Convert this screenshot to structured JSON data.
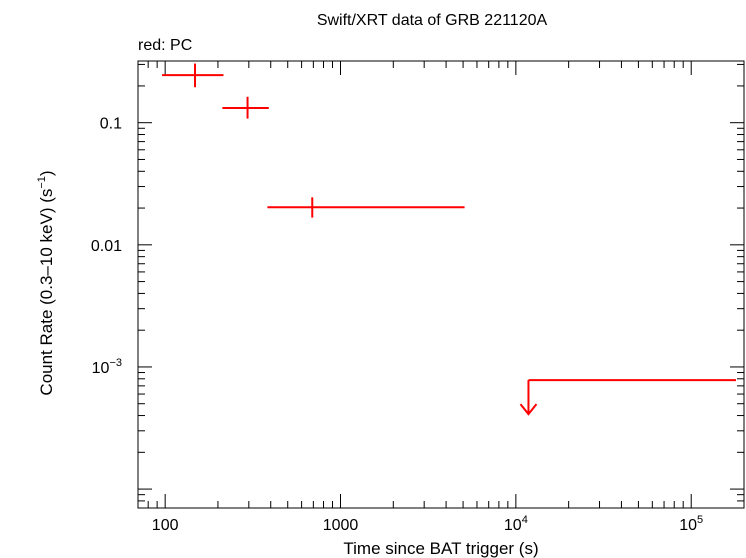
{
  "chart_data": {
    "type": "scatter",
    "title": "Swift/XRT data of GRB 221120A",
    "subtitle": "red: PC",
    "xlabel": "Time since BAT trigger (s)",
    "ylabel": "Count Rate (0.3–10 keV) (s",
    "ylabel_sup": "−1",
    "ylabel_tail": ")",
    "xscale": "log",
    "yscale": "log",
    "xlim": [
      70,
      200000
    ],
    "ylim": [
      7e-05,
      0.32
    ],
    "xticks": [
      {
        "value": 100,
        "base": "100",
        "exp": ""
      },
      {
        "value": 1000,
        "base": "1000",
        "exp": ""
      },
      {
        "value": 10000,
        "base": "10",
        "exp": "4"
      },
      {
        "value": 100000,
        "base": "10",
        "exp": "5"
      }
    ],
    "yticks": [
      {
        "value": 0.1,
        "base": "0.1",
        "exp": ""
      },
      {
        "value": 0.01,
        "base": "0.01",
        "exp": ""
      },
      {
        "value": 0.001,
        "base": "10",
        "exp": "−3"
      }
    ],
    "series": [
      {
        "color": "#ff0000",
        "points": [
          {
            "x": 148,
            "xlo": 96,
            "xhi": 215,
            "y": 0.245,
            "ylo": 0.195,
            "yhi": 0.305
          },
          {
            "x": 295,
            "xlo": 212,
            "xhi": 390,
            "y": 0.132,
            "ylo": 0.108,
            "yhi": 0.163
          },
          {
            "x": 690,
            "xlo": 383,
            "xhi": 5100,
            "y": 0.0203,
            "ylo": 0.0167,
            "yhi": 0.0245
          }
        ],
        "upper_limits": [
          {
            "x": 11800,
            "xlo": 11800,
            "xhi": 180000,
            "y": 0.00078
          }
        ]
      }
    ]
  }
}
